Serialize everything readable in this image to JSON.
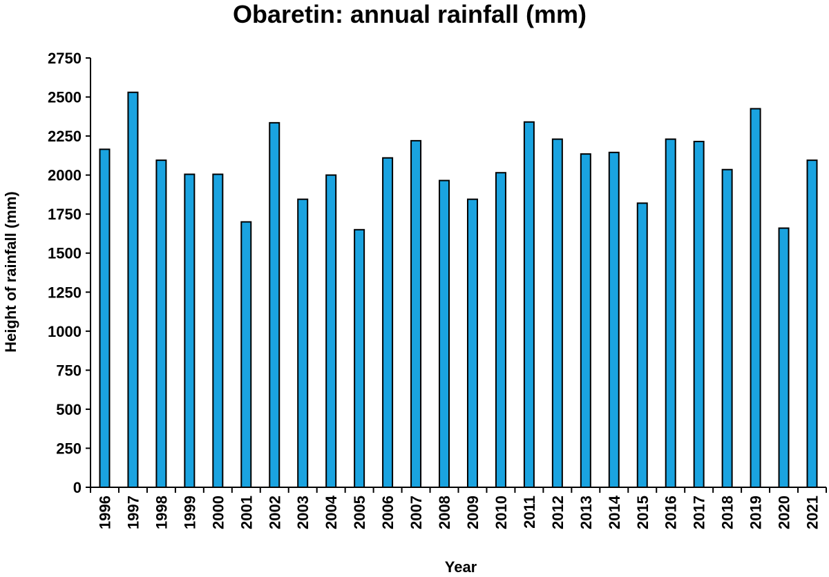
{
  "chart_data": {
    "type": "bar",
    "title": "Obaretin: annual rainfall (mm)",
    "xlabel": "Year",
    "ylabel": "Height of rainfall (mm)",
    "categories": [
      "1996",
      "1997",
      "1998",
      "1999",
      "2000",
      "2001",
      "2002",
      "2003",
      "2004",
      "2005",
      "2006",
      "2007",
      "2008",
      "2009",
      "2010",
      "2011",
      "2012",
      "2013",
      "2014",
      "2015",
      "2016",
      "2017",
      "2018",
      "2019",
      "2020",
      "2021"
    ],
    "values": [
      2165,
      2530,
      2095,
      2005,
      2005,
      1700,
      2335,
      1845,
      2000,
      1650,
      2110,
      2220,
      1965,
      1845,
      2015,
      2340,
      2230,
      2135,
      2145,
      1820,
      2230,
      2215,
      2035,
      2425,
      1660,
      2095
    ],
    "ylim": [
      0,
      2750
    ],
    "yticks": [
      0,
      250,
      500,
      750,
      1000,
      1250,
      1500,
      1750,
      2000,
      2250,
      2500,
      2750
    ],
    "grid": false,
    "legend": "none",
    "bar_color": "#1aa3e0",
    "bar_edge_color": "#000000"
  }
}
